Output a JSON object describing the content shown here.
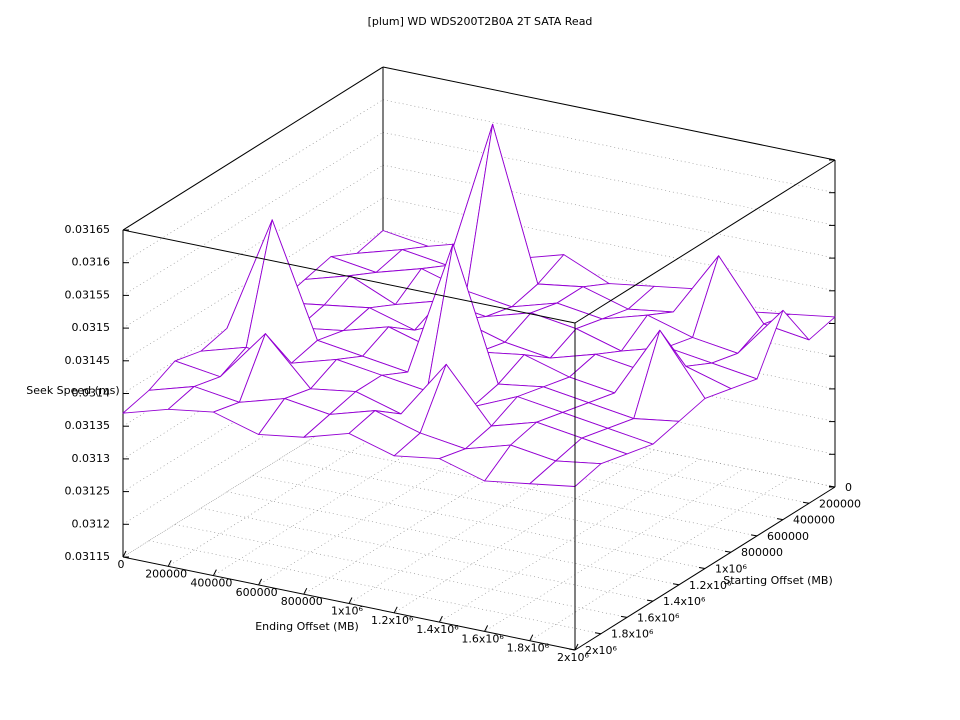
{
  "chart_data": {
    "type": "surface",
    "title": "[plum] WD WDS200T2B0A 2T SATA Read",
    "x_label": "Ending Offset (MB)",
    "y_label": "Starting Offset (MB)",
    "z_label": "Seek Speed (ms)",
    "color": "#9400d3",
    "grid": true,
    "x": [
      0,
      200000,
      400000,
      600000,
      800000,
      1000000,
      1200000,
      1400000,
      1600000,
      1800000,
      2000000
    ],
    "y": [
      0,
      200000,
      400000,
      600000,
      800000,
      1000000,
      1200000,
      1400000,
      1600000,
      1800000,
      2000000
    ],
    "z": [
      [
        0.0314,
        0.03139,
        0.03141,
        0.0314,
        0.03142,
        0.03139,
        0.0314,
        0.03141,
        0.03139,
        0.0314,
        0.03141
      ],
      [
        0.03139,
        0.03141,
        0.0314,
        0.03163,
        0.0314,
        0.03141,
        0.03139,
        0.0314,
        0.0315,
        0.03141,
        0.0314
      ],
      [
        0.03141,
        0.0314,
        0.03142,
        0.0314,
        0.03139,
        0.03141,
        0.0314,
        0.03142,
        0.0314,
        0.03139,
        0.03147
      ],
      [
        0.0314,
        0.03142,
        0.03139,
        0.03141,
        0.0314,
        0.03142,
        0.03141,
        0.03139,
        0.03141,
        0.0314,
        0.03139
      ],
      [
        0.03139,
        0.0314,
        0.03141,
        0.03139,
        0.03142,
        0.0314,
        0.03139,
        0.03141,
        0.0314,
        0.03142,
        0.0314
      ],
      [
        0.03141,
        0.03139,
        0.0314,
        0.03142,
        0.0314,
        0.03141,
        0.03142,
        0.0314,
        0.03139,
        0.0315,
        0.03141
      ],
      [
        0.0314,
        0.03158,
        0.03141,
        0.0314,
        0.03139,
        0.0316,
        0.0314,
        0.03141,
        0.0314,
        0.03139,
        0.0314
      ],
      [
        0.03139,
        0.03141,
        0.0314,
        0.03142,
        0.03141,
        0.0314,
        0.03139,
        0.03142,
        0.03141,
        0.0314,
        0.03139
      ],
      [
        0.0314,
        0.03139,
        0.03147,
        0.0314,
        0.03141,
        0.03139,
        0.03148,
        0.0314,
        0.03142,
        0.03141,
        0.0314
      ],
      [
        0.03138,
        0.0314,
        0.03139,
        0.03141,
        0.0314,
        0.03142,
        0.0314,
        0.03139,
        0.03141,
        0.0314,
        0.03141
      ],
      [
        0.03137,
        0.03139,
        0.0314,
        0.03138,
        0.03139,
        0.03141,
        0.03139,
        0.0314,
        0.03138,
        0.03139,
        0.0314
      ]
    ],
    "xlim": [
      0,
      2000000
    ],
    "ylim": [
      0,
      2000000
    ],
    "zlim": [
      0.03115,
      0.03165
    ],
    "xticks": [
      0,
      200000,
      400000,
      600000,
      800000,
      {
        "value": 1000000,
        "label": "1x10⁶"
      },
      {
        "value": 1200000,
        "label": "1.2x10⁶"
      },
      {
        "value": 1400000,
        "label": "1.4x10⁶"
      },
      {
        "value": 1600000,
        "label": "1.6x10⁶"
      },
      {
        "value": 1800000,
        "label": "1.8x10⁶"
      },
      {
        "value": 2000000,
        "label": "2x10⁶"
      }
    ],
    "yticks": [
      0,
      200000,
      400000,
      600000,
      800000,
      {
        "value": 1000000,
        "label": "1x10⁶"
      },
      {
        "value": 1200000,
        "label": "1.2x10⁶"
      },
      {
        "value": 1400000,
        "label": "1.4x10⁶"
      },
      {
        "value": 1600000,
        "label": "1.6x10⁶"
      },
      {
        "value": 1800000,
        "label": "1.8x10⁶"
      },
      {
        "value": 2000000,
        "label": "2x10⁶"
      }
    ],
    "zticks": [
      0.03115,
      0.0312,
      0.03125,
      0.0313,
      0.03135,
      0.0314,
      0.03145,
      0.0315,
      0.03155,
      0.0316,
      0.03165
    ]
  }
}
